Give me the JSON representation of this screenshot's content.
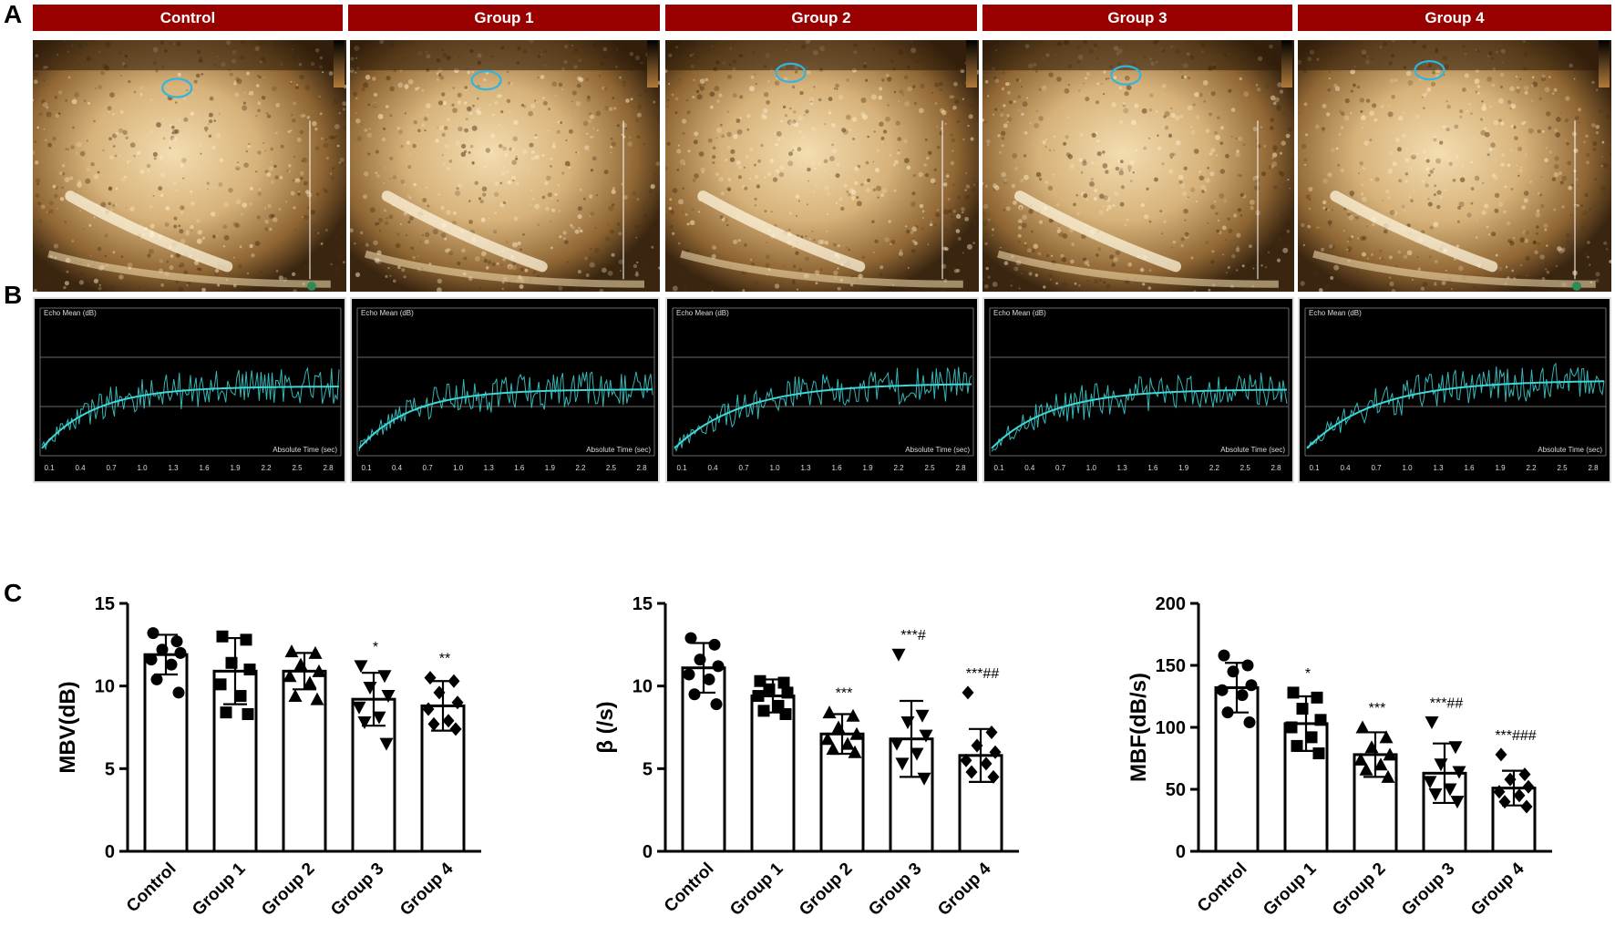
{
  "panels": {
    "a": "A",
    "b": "B",
    "c": "C"
  },
  "groups": [
    "Control",
    "Group 1",
    "Group 2",
    "Group 3",
    "Group 4"
  ],
  "tic_labels": {
    "ylabel": "Echo Mean (dB)",
    "xlabel": "Absolute Time (sec)",
    "xticks": [
      "0.1",
      "0.4",
      "0.7",
      "1.0",
      "1.3",
      "1.6",
      "1.9",
      "2.2",
      "2.5",
      "2.8"
    ]
  },
  "colors": {
    "header": "#990000",
    "curve": "#3fd6d6",
    "roi": "#2fb6e0"
  },
  "chart_data": [
    {
      "type": "bar",
      "ylabel": "MBV(dB)",
      "ylim": [
        0,
        15
      ],
      "yticks": [
        0,
        5,
        10,
        15
      ],
      "categories": [
        "Control",
        "Group 1",
        "Group 2",
        "Group 3",
        "Group 4"
      ],
      "values": [
        11.9,
        10.9,
        10.9,
        9.2,
        8.8
      ],
      "sd": [
        1.2,
        2.0,
        1.1,
        1.6,
        1.5
      ],
      "markers": [
        "circle",
        "square",
        "triangle",
        "triangle-down",
        "diamond"
      ],
      "annotations": [
        "",
        "",
        "",
        "*",
        "**"
      ],
      "points": [
        [
          13.2,
          12.7,
          12.2,
          12.0,
          11.6,
          11.3,
          10.4,
          9.6
        ],
        [
          13.0,
          12.8,
          11.4,
          11.0,
          10.1,
          9.4,
          8.4,
          8.3
        ],
        [
          12.1,
          12.0,
          11.3,
          10.9,
          10.6,
          10.2,
          9.4,
          9.2
        ],
        [
          11.2,
          10.6,
          9.9,
          9.4,
          8.7,
          8.1,
          7.8,
          6.5
        ],
        [
          10.5,
          10.3,
          9.6,
          9.0,
          8.6,
          7.9,
          7.7,
          7.4
        ]
      ]
    },
    {
      "type": "bar",
      "ylabel": "β (/s)",
      "ylim": [
        0,
        15
      ],
      "yticks": [
        0,
        5,
        10,
        15
      ],
      "categories": [
        "Control",
        "Group 1",
        "Group 2",
        "Group 3",
        "Group 4"
      ],
      "values": [
        11.1,
        9.4,
        7.1,
        6.8,
        5.8
      ],
      "sd": [
        1.5,
        1.0,
        1.2,
        2.3,
        1.6
      ],
      "markers": [
        "circle",
        "square",
        "triangle",
        "triangle-down",
        "diamond"
      ],
      "annotations": [
        "",
        "",
        "***",
        "***#",
        "***##"
      ],
      "points": [
        [
          12.9,
          12.5,
          11.6,
          11.2,
          10.7,
          10.4,
          9.5,
          8.9
        ],
        [
          10.3,
          10.2,
          9.8,
          9.6,
          9.4,
          8.8,
          8.5,
          8.3
        ],
        [
          8.4,
          8.2,
          7.5,
          7.1,
          6.8,
          6.5,
          6.2,
          6.0
        ],
        [
          11.9,
          8.2,
          7.8,
          7.0,
          6.5,
          5.9,
          5.3,
          4.4
        ],
        [
          9.6,
          7.2,
          6.4,
          6.0,
          5.5,
          5.3,
          4.8,
          4.5
        ]
      ]
    },
    {
      "type": "bar",
      "ylabel": "MBF(dB/s)",
      "ylim": [
        0,
        200
      ],
      "yticks": [
        0,
        50,
        100,
        150,
        200
      ],
      "categories": [
        "Control",
        "Group 1",
        "Group 2",
        "Group 3",
        "Group 4"
      ],
      "values": [
        132,
        103,
        78,
        63,
        51
      ],
      "sd": [
        20,
        22,
        18,
        24,
        14
      ],
      "markers": [
        "circle",
        "square",
        "triangle",
        "triangle-down",
        "diamond"
      ],
      "annotations": [
        "",
        "*",
        "***",
        "***##",
        "***###"
      ],
      "points": [
        [
          158,
          150,
          145,
          134,
          130,
          126,
          112,
          104
        ],
        [
          128,
          124,
          115,
          106,
          100,
          92,
          85,
          79
        ],
        [
          100,
          92,
          84,
          78,
          74,
          70,
          66,
          60
        ],
        [
          104,
          84,
          70,
          64,
          56,
          50,
          46,
          40
        ],
        [
          78,
          62,
          58,
          52,
          48,
          45,
          40,
          36
        ]
      ]
    }
  ]
}
